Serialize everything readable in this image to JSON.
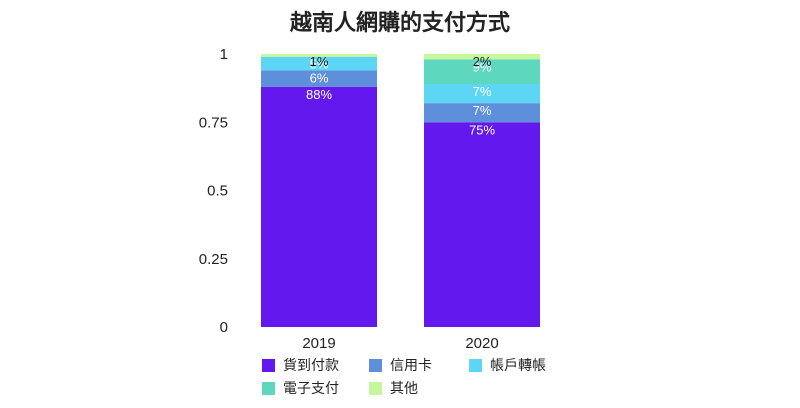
{
  "chart_data": {
    "type": "bar",
    "stacked": true,
    "title": "越南人網購的支付方式",
    "categories": [
      "2019",
      "2020"
    ],
    "ylim": [
      0,
      1
    ],
    "yticks": [
      "0",
      "0.25",
      "0.5",
      "0.75",
      "1"
    ],
    "ytick_values": [
      0,
      0.25,
      0.5,
      0.75,
      1
    ],
    "grid": false,
    "legend_position": "bottom",
    "series": [
      {
        "name": "貨到付款",
        "color": "#6318EE",
        "values": [
          0.88,
          0.75
        ],
        "labels": [
          "88%",
          "75%"
        ],
        "label_color": "#ffffff"
      },
      {
        "name": "信用卡",
        "color": "#5E8FDA",
        "values": [
          0.06,
          0.07
        ],
        "labels": [
          "6%",
          "7%"
        ],
        "label_color": "#ffffff"
      },
      {
        "name": "帳戶轉帳",
        "color": "#5CD6F4",
        "values": [
          0.05,
          0.07
        ],
        "labels": [
          "5%",
          "7%"
        ],
        "label_color": "#ffffff"
      },
      {
        "name": "電子支付",
        "color": "#5ED7BF",
        "values": [
          0.0,
          0.09
        ],
        "labels": [
          "",
          "9%"
        ],
        "label_color": "#ffffff"
      },
      {
        "name": "其他",
        "color": "#C7F79C",
        "values": [
          0.01,
          0.02
        ],
        "labels": [
          "1%",
          "2%"
        ],
        "label_color": "#222222"
      }
    ]
  }
}
